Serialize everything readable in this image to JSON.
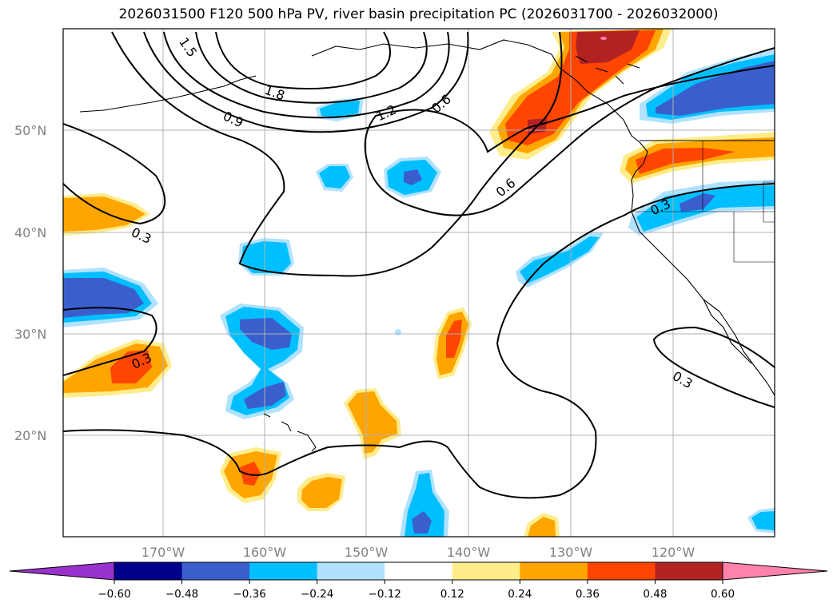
{
  "title": "2026031500 F120 500 hPa PV, river basin precipitation PC (2026031700 - 2026032000)",
  "lat_ticks": [
    "50°N",
    "40°N",
    "30°N",
    "20°N"
  ],
  "lon_ticks": [
    "170°W",
    "160°W",
    "150°W",
    "140°W",
    "130°W",
    "120°W"
  ],
  "contour_labels": [
    "1.5",
    "1.8",
    "0.9",
    "1.2",
    "0.6",
    "0.6",
    "0.3",
    "0.3",
    "0.3",
    "0.3"
  ],
  "colorbar": {
    "ticks": [
      "−0.60",
      "−0.48",
      "−0.36",
      "−0.24",
      "−0.12",
      "0.12",
      "0.24",
      "0.36",
      "0.48",
      "0.60"
    ],
    "colors": [
      "#9932cc",
      "#00008b",
      "#3a5fcd",
      "#00bfff",
      "#b0e2ff",
      "#ffffff",
      "#ffec8b",
      "#ffa500",
      "#ff4500",
      "#b22222",
      "#ff82ab"
    ]
  },
  "colors": {
    "grid": "#b0b0b0",
    "contour": "#000000",
    "coast": "#000000"
  }
}
